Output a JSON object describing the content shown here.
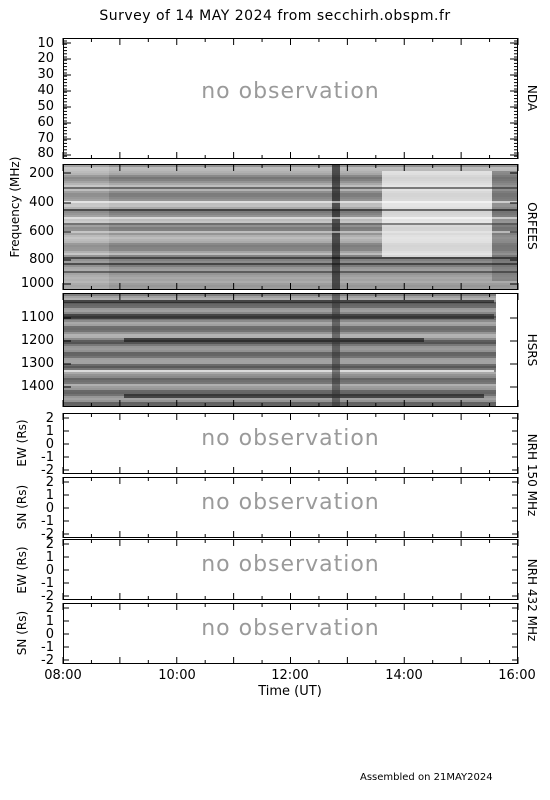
{
  "title": "Survey of 14 MAY 2024 from secchirh.obspm.fr",
  "footer": "Assembled on 21MAY2024",
  "chart_data": {
    "type": "heatmap",
    "title": "Survey of 14 MAY 2024 from secchirh.obspm.fr",
    "xlabel": "Time (UT)",
    "xlim": [
      "08:00",
      "16:00"
    ],
    "xticks": [
      "08:00",
      "10:00",
      "12:00",
      "14:00",
      "16:00"
    ],
    "shared_ylabel": "Frequency (MHz)",
    "panels": [
      {
        "name": "NDA",
        "ylim": [
          10,
          80
        ],
        "yticks": [
          "10",
          "20",
          "30",
          "40",
          "50",
          "60",
          "70",
          "80"
        ],
        "status": "no observation"
      },
      {
        "name": "ORFEES",
        "ylim": [
          140,
          1000
        ],
        "yticks": [
          "200",
          "400",
          "600",
          "800",
          "1000"
        ],
        "status": "spectrogram"
      },
      {
        "name": "HSRS",
        "ylim": [
          1020,
          1500
        ],
        "yticks": [
          "1100",
          "1200",
          "1300",
          "1400"
        ],
        "status": "spectrogram"
      },
      {
        "name": "NRH 150 MHz EW",
        "ylabel": "EW (Rs)",
        "ylim": [
          -2,
          2
        ],
        "yticks": [
          "2",
          "1",
          "0",
          "-1",
          "-2"
        ],
        "status": "no observation"
      },
      {
        "name": "NRH 150 MHz SN",
        "ylabel": "SN (Rs)",
        "ylim": [
          -2,
          2
        ],
        "yticks": [
          "2",
          "1",
          "0",
          "-1",
          "-2"
        ],
        "status": "no observation"
      },
      {
        "name": "NRH 432 MHz EW",
        "ylabel": "EW (Rs)",
        "ylim": [
          -2,
          2
        ],
        "yticks": [
          "2",
          "1",
          "0",
          "-1",
          "-2"
        ],
        "status": "no observation"
      },
      {
        "name": "NRH 432 MHz SN",
        "ylabel": "SN (Rs)",
        "ylim": [
          -2,
          2
        ],
        "yticks": [
          "2",
          "1",
          "0",
          "-1",
          "-2"
        ],
        "status": "no observation"
      }
    ],
    "right_labels": [
      "NDA",
      "ORFEES",
      "HSRS",
      "NRH 150 MHz",
      "NRH 432 MHz"
    ],
    "no_observation_text": "no observation"
  }
}
